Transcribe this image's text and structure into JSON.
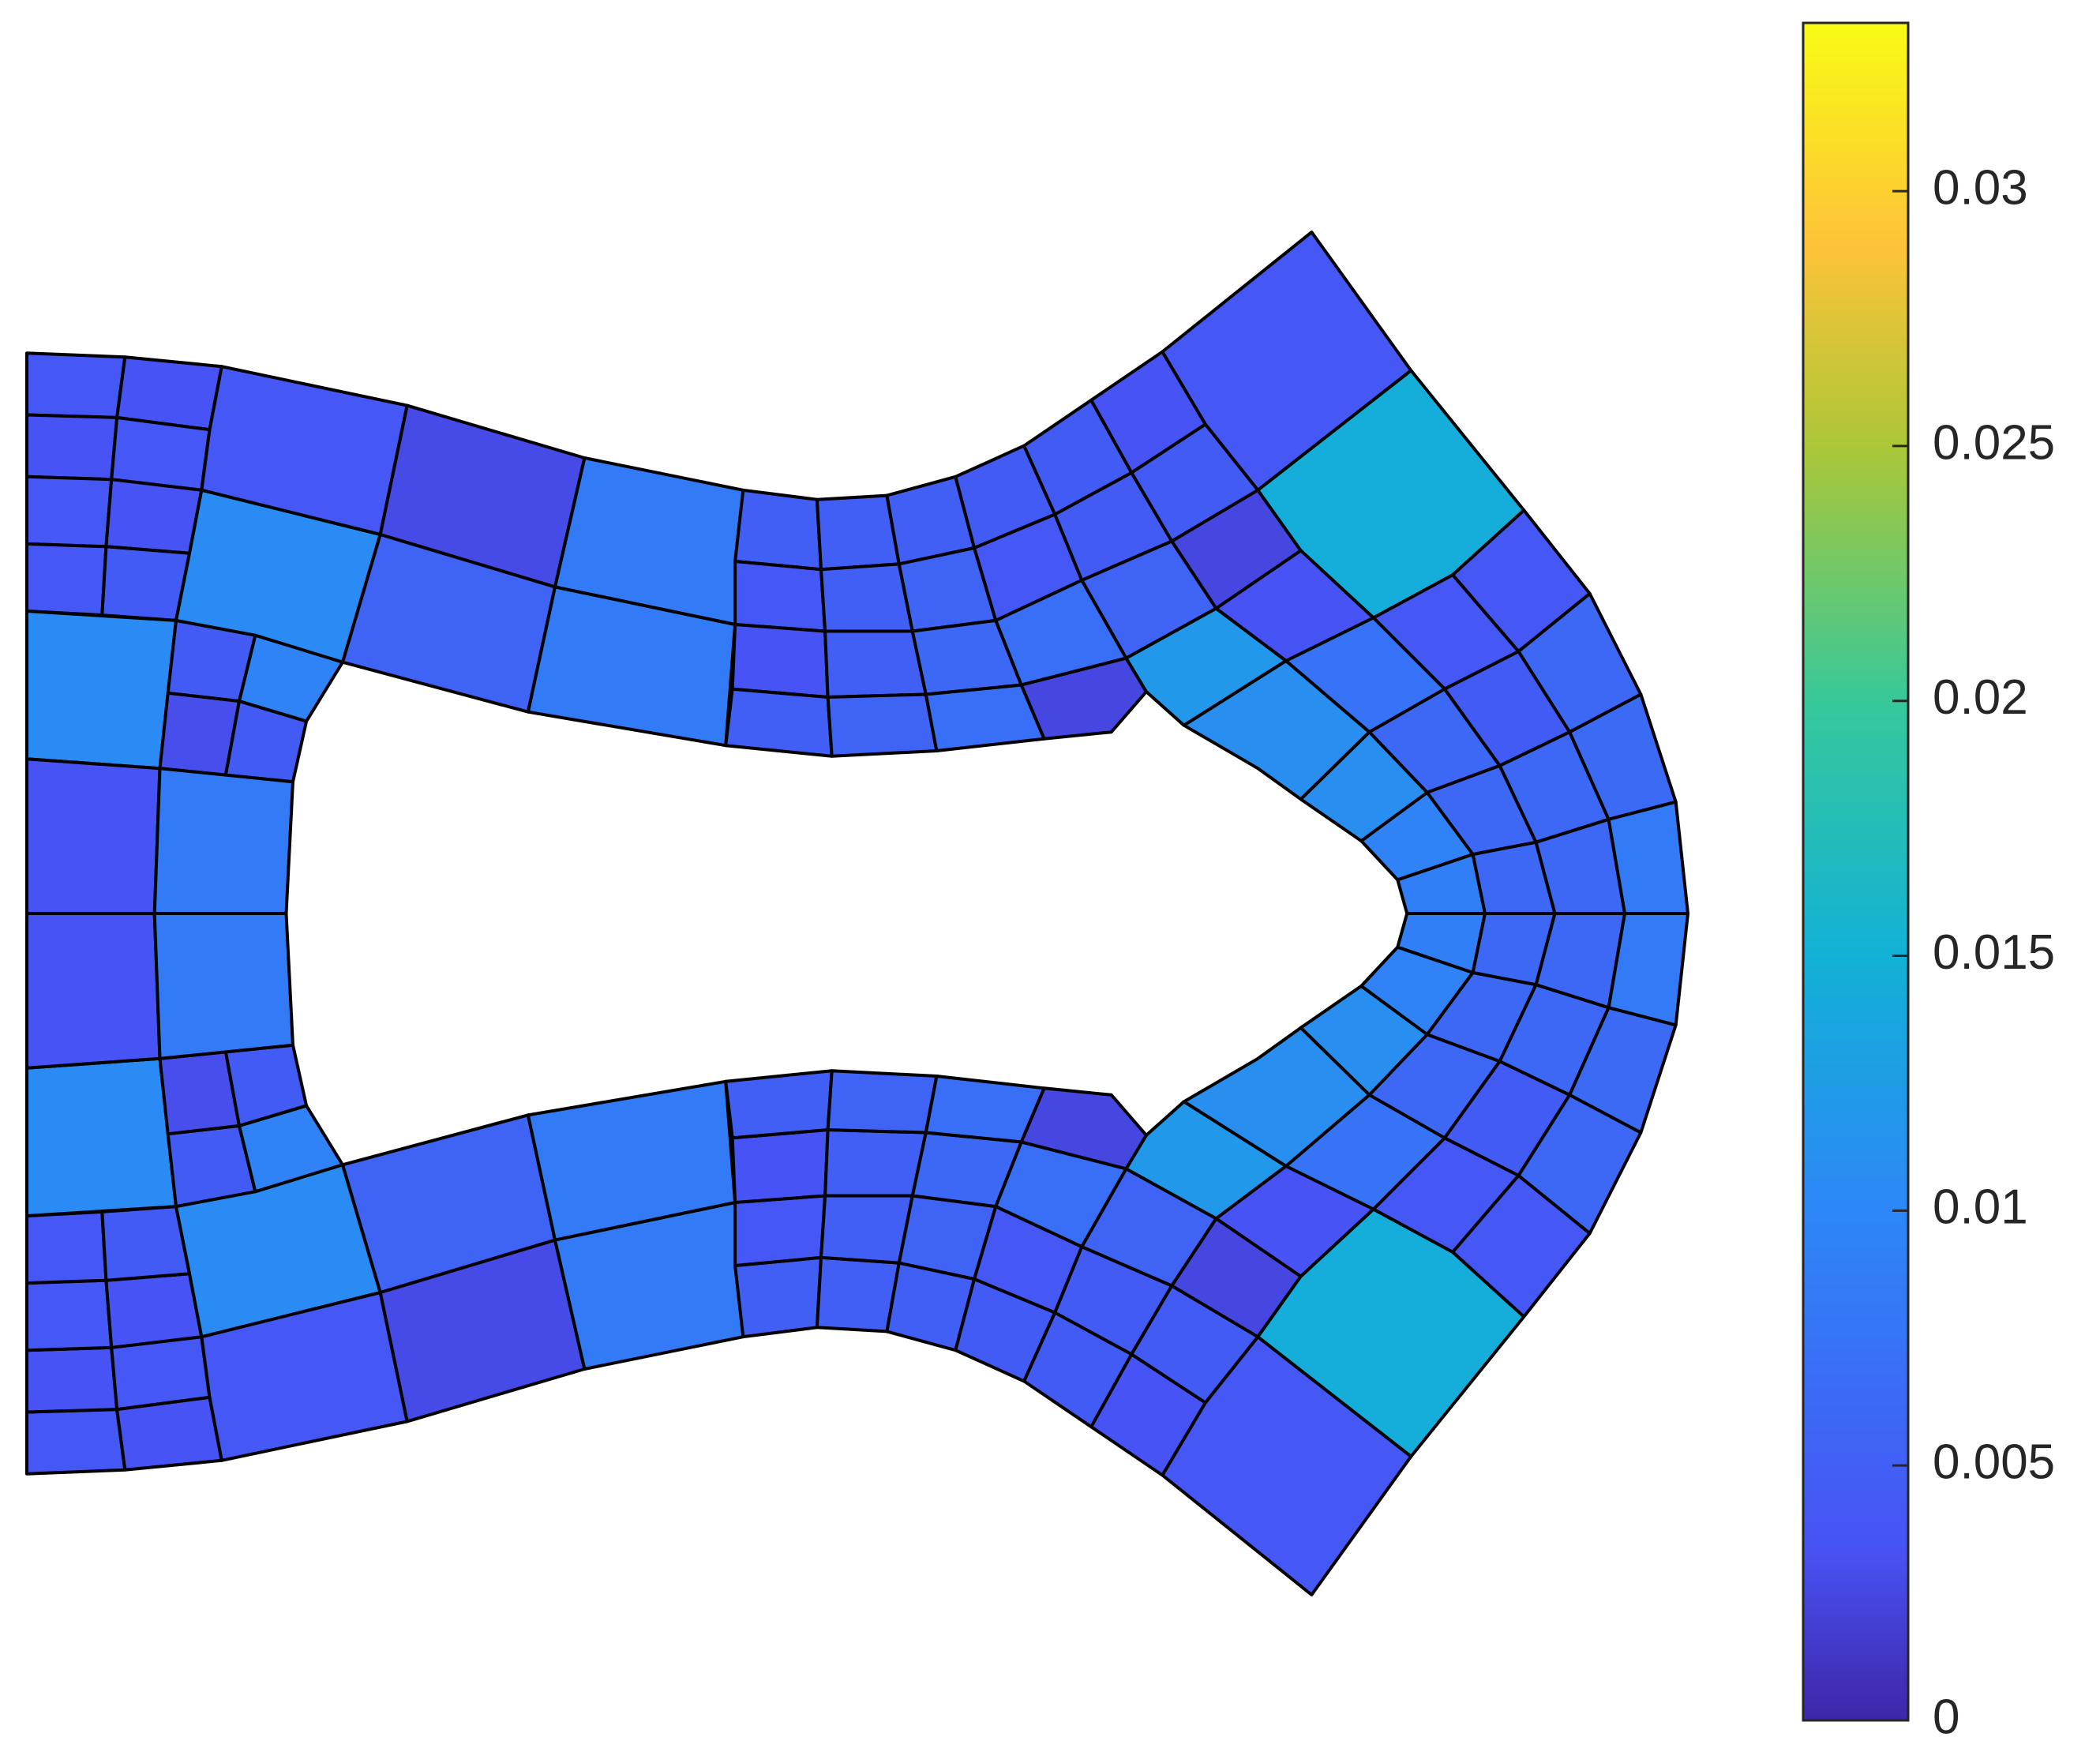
{
  "chart_data": {
    "type": "mesh",
    "xlim": [
      20,
      1256
    ],
    "ylim": [
      173,
      1187
    ],
    "clim": [
      0,
      0.0333
    ],
    "cticks": [
      0,
      0.005,
      0.01,
      0.015,
      0.02,
      0.025,
      0.03
    ],
    "colormap": [
      [
        0,
        "#3e26a8"
      ],
      [
        0.1,
        "#4852f4"
      ],
      [
        0.3,
        "#2d87f7"
      ],
      [
        0.45,
        "#12b1d6"
      ],
      [
        0.6,
        "#37c89a"
      ],
      [
        0.75,
        "#abc738"
      ],
      [
        0.87,
        "#fec338"
      ],
      [
        1,
        "#f9fb15"
      ]
    ],
    "edge_color": "#000000",
    "polygons": [
      [
        20,
        263,
        93,
        266,
        87,
        311,
        20,
        309
      ],
      [
        93,
        266,
        165,
        273,
        156,
        320,
        87,
        311
      ],
      [
        20,
        309,
        87,
        311,
        83,
        357,
        20,
        355
      ],
      [
        87,
        311,
        156,
        320,
        150,
        365,
        83,
        357
      ],
      [
        20,
        355,
        83,
        357,
        79,
        407,
        20,
        405
      ],
      [
        83,
        357,
        150,
        365,
        141,
        412,
        79,
        407
      ],
      [
        20,
        405,
        79,
        407,
        76,
        458,
        20,
        455
      ],
      [
        79,
        407,
        141,
        412,
        131,
        462,
        76,
        458
      ],
      [
        165,
        273,
        303,
        302,
        283,
        398,
        150,
        365,
        156,
        320
      ],
      [
        150,
        365,
        283,
        398,
        255,
        493,
        131,
        462,
        141,
        412
      ],
      [
        303,
        302,
        435,
        341,
        413,
        437,
        283,
        398
      ],
      [
        283,
        398,
        413,
        437,
        393,
        530,
        255,
        493
      ],
      [
        435,
        341,
        553,
        365,
        547,
        465,
        413,
        437
      ],
      [
        413,
        437,
        547,
        465,
        540,
        555,
        393,
        530
      ],
      [
        553,
        365,
        608,
        372,
        611,
        424,
        547,
        418
      ],
      [
        547,
        418,
        611,
        424,
        614,
        470,
        547,
        465
      ],
      [
        547,
        465,
        614,
        470,
        616,
        519,
        545,
        513
      ],
      [
        545,
        513,
        616,
        519,
        619,
        563,
        540,
        555
      ],
      [
        608,
        372,
        660,
        369,
        669,
        420,
        611,
        424
      ],
      [
        611,
        424,
        669,
        420,
        679,
        470,
        614,
        470
      ],
      [
        614,
        470,
        679,
        470,
        689,
        517,
        616,
        519
      ],
      [
        616,
        519,
        689,
        517,
        697,
        559,
        619,
        563
      ],
      [
        660,
        369,
        711,
        355,
        725,
        408,
        669,
        420
      ],
      [
        669,
        420,
        725,
        408,
        741,
        462,
        679,
        470
      ],
      [
        679,
        470,
        741,
        462,
        760,
        510,
        689,
        517
      ],
      [
        689,
        517,
        760,
        510,
        777,
        550,
        697,
        559
      ],
      [
        711,
        355,
        762,
        332,
        785,
        383,
        725,
        408
      ],
      [
        725,
        408,
        785,
        383,
        805,
        432,
        741,
        462
      ],
      [
        741,
        462,
        805,
        432,
        838,
        490,
        760,
        510
      ],
      [
        760,
        510,
        838,
        490,
        853,
        515,
        827,
        545,
        777,
        550
      ],
      [
        762,
        332,
        812,
        298,
        842,
        352,
        785,
        383
      ],
      [
        785,
        383,
        842,
        352,
        872,
        403,
        805,
        432
      ],
      [
        805,
        432,
        872,
        403,
        905,
        453,
        838,
        490
      ],
      [
        838,
        490,
        905,
        453,
        957,
        492,
        881,
        540,
        853,
        515
      ],
      [
        812,
        298,
        865,
        262,
        897,
        316,
        842,
        352
      ],
      [
        842,
        352,
        897,
        316,
        936,
        365,
        872,
        403
      ],
      [
        872,
        403,
        936,
        365,
        968,
        410,
        905,
        453
      ],
      [
        865,
        262,
        976,
        173,
        1050,
        276,
        936,
        365,
        897,
        316
      ],
      [
        936,
        365,
        1050,
        276,
        1134,
        380,
        1081,
        428,
        1022,
        460,
        968,
        410
      ],
      [
        968,
        410,
        1022,
        460,
        957,
        492,
        905,
        453
      ],
      [
        881,
        540,
        957,
        492,
        1019,
        545,
        968,
        595,
        936,
        572
      ],
      [
        1022,
        460,
        1081,
        428,
        1130,
        485,
        1075,
        513
      ],
      [
        1081,
        428,
        1134,
        380,
        1183,
        442,
        1130,
        485
      ],
      [
        957,
        492,
        1022,
        460,
        1075,
        513,
        1019,
        545
      ],
      [
        968,
        595,
        1019,
        545,
        1062,
        590,
        1013,
        626
      ],
      [
        1019,
        545,
        1075,
        513,
        1116,
        570,
        1062,
        590
      ],
      [
        1075,
        513,
        1130,
        485,
        1168,
        545,
        1116,
        570
      ],
      [
        1130,
        485,
        1183,
        442,
        1221,
        517,
        1168,
        545
      ],
      [
        1013,
        626,
        1062,
        590,
        1096,
        636,
        1040,
        655
      ],
      [
        1062,
        590,
        1116,
        570,
        1143,
        627,
        1096,
        636
      ],
      [
        1116,
        570,
        1168,
        545,
        1197,
        610,
        1143,
        627
      ],
      [
        1168,
        545,
        1221,
        517,
        1247,
        597,
        1197,
        610
      ],
      [
        1040,
        655,
        1096,
        636,
        1105,
        680,
        1047,
        680
      ],
      [
        1096,
        636,
        1143,
        627,
        1157,
        680,
        1105,
        680
      ],
      [
        1143,
        627,
        1197,
        610,
        1209,
        680,
        1157,
        680
      ],
      [
        1197,
        610,
        1247,
        597,
        1256,
        680,
        1209,
        680
      ],
      [
        20,
        455,
        131,
        462,
        119,
        572,
        20,
        565
      ],
      [
        131,
        462,
        190,
        473,
        178,
        522,
        125,
        516
      ],
      [
        190,
        473,
        255,
        493,
        228,
        537,
        178,
        522
      ],
      [
        125,
        516,
        178,
        522,
        168,
        577,
        119,
        572
      ],
      [
        178,
        522,
        228,
        537,
        218,
        582,
        168,
        577
      ],
      [
        20,
        565,
        119,
        572,
        115,
        680,
        20,
        680
      ],
      [
        119,
        572,
        218,
        582,
        213,
        680,
        115,
        680
      ],
      [
        20,
        1097,
        93,
        1094,
        87,
        1049,
        20,
        1051
      ],
      [
        93,
        1094,
        165,
        1087,
        156,
        1040,
        87,
        1049
      ],
      [
        20,
        1051,
        87,
        1049,
        83,
        1003,
        20,
        1005
      ],
      [
        87,
        1049,
        156,
        1040,
        150,
        995,
        83,
        1003
      ],
      [
        20,
        1005,
        83,
        1003,
        79,
        953,
        20,
        955
      ],
      [
        83,
        1003,
        150,
        995,
        141,
        948,
        79,
        953
      ],
      [
        20,
        955,
        79,
        953,
        76,
        902,
        20,
        905
      ],
      [
        79,
        953,
        141,
        948,
        131,
        898,
        76,
        902
      ],
      [
        165,
        1087,
        303,
        1058,
        283,
        962,
        150,
        995,
        156,
        1040
      ],
      [
        150,
        995,
        283,
        962,
        255,
        867,
        131,
        898,
        141,
        948
      ],
      [
        303,
        1058,
        435,
        1019,
        413,
        923,
        283,
        962
      ],
      [
        283,
        962,
        413,
        923,
        393,
        830,
        255,
        867
      ],
      [
        435,
        1019,
        553,
        995,
        547,
        895,
        413,
        923
      ],
      [
        413,
        923,
        547,
        895,
        540,
        805,
        393,
        830
      ],
      [
        553,
        995,
        608,
        988,
        611,
        936,
        547,
        942
      ],
      [
        547,
        942,
        611,
        936,
        614,
        890,
        547,
        895
      ],
      [
        547,
        895,
        614,
        890,
        616,
        841,
        545,
        847
      ],
      [
        545,
        847,
        616,
        841,
        619,
        797,
        540,
        805
      ],
      [
        608,
        988,
        660,
        991,
        669,
        940,
        611,
        936
      ],
      [
        611,
        936,
        669,
        940,
        679,
        890,
        614,
        890
      ],
      [
        614,
        890,
        679,
        890,
        689,
        843,
        616,
        841
      ],
      [
        616,
        841,
        689,
        843,
        697,
        801,
        619,
        797
      ],
      [
        660,
        991,
        711,
        1005,
        725,
        952,
        669,
        940
      ],
      [
        669,
        940,
        725,
        952,
        741,
        898,
        679,
        890
      ],
      [
        679,
        890,
        741,
        898,
        760,
        850,
        689,
        843
      ],
      [
        689,
        843,
        760,
        850,
        777,
        810,
        697,
        801
      ],
      [
        711,
        1005,
        762,
        1028,
        785,
        977,
        725,
        952
      ],
      [
        725,
        952,
        785,
        977,
        805,
        928,
        741,
        898
      ],
      [
        741,
        898,
        805,
        928,
        838,
        870,
        760,
        850
      ],
      [
        760,
        850,
        838,
        870,
        853,
        845,
        827,
        815,
        777,
        810
      ],
      [
        762,
        1028,
        812,
        1062,
        842,
        1008,
        785,
        977
      ],
      [
        785,
        977,
        842,
        1008,
        872,
        957,
        805,
        928
      ],
      [
        805,
        928,
        872,
        957,
        905,
        907,
        838,
        870
      ],
      [
        838,
        870,
        905,
        907,
        957,
        868,
        881,
        820,
        853,
        845
      ],
      [
        812,
        1062,
        865,
        1098,
        897,
        1044,
        842,
        1008
      ],
      [
        842,
        1008,
        897,
        1044,
        936,
        995,
        872,
        957
      ],
      [
        872,
        957,
        936,
        995,
        968,
        950,
        905,
        907
      ],
      [
        865,
        1098,
        976,
        1187,
        1050,
        1084,
        936,
        995,
        897,
        1044
      ],
      [
        936,
        995,
        1050,
        1084,
        1134,
        980,
        1081,
        932,
        1022,
        900,
        968,
        950
      ],
      [
        968,
        950,
        1022,
        900,
        957,
        868,
        905,
        907
      ],
      [
        881,
        820,
        957,
        868,
        1019,
        815,
        968,
        765,
        936,
        788
      ],
      [
        1022,
        900,
        1081,
        932,
        1130,
        875,
        1075,
        847
      ],
      [
        1081,
        932,
        1134,
        980,
        1183,
        918,
        1130,
        875
      ],
      [
        957,
        868,
        1022,
        900,
        1075,
        847,
        1019,
        815
      ],
      [
        968,
        765,
        1019,
        815,
        1062,
        770,
        1013,
        734
      ],
      [
        1019,
        815,
        1075,
        847,
        1116,
        790,
        1062,
        770
      ],
      [
        1075,
        847,
        1130,
        875,
        1168,
        815,
        1116,
        790
      ],
      [
        1130,
        875,
        1183,
        918,
        1221,
        843,
        1168,
        815
      ],
      [
        1013,
        734,
        1062,
        770,
        1096,
        724,
        1040,
        705
      ],
      [
        1062,
        770,
        1116,
        790,
        1143,
        733,
        1096,
        724
      ],
      [
        1116,
        790,
        1168,
        815,
        1197,
        750,
        1143,
        733
      ],
      [
        1168,
        815,
        1221,
        843,
        1247,
        763,
        1197,
        750
      ],
      [
        1040,
        705,
        1096,
        724,
        1105,
        680,
        1047,
        680
      ],
      [
        1096,
        724,
        1143,
        733,
        1157,
        680,
        1105,
        680
      ],
      [
        1143,
        733,
        1197,
        750,
        1209,
        680,
        1157,
        680
      ],
      [
        1197,
        750,
        1247,
        763,
        1256,
        680,
        1209,
        680
      ],
      [
        20,
        905,
        131,
        898,
        119,
        788,
        20,
        795
      ],
      [
        131,
        898,
        190,
        887,
        178,
        838,
        125,
        844
      ],
      [
        190,
        887,
        255,
        867,
        228,
        823,
        178,
        838
      ],
      [
        125,
        844,
        178,
        838,
        168,
        783,
        119,
        788
      ],
      [
        178,
        838,
        228,
        823,
        218,
        778,
        168,
        783
      ],
      [
        20,
        795,
        119,
        788,
        115,
        680,
        20,
        680
      ],
      [
        119,
        788,
        218,
        778,
        213,
        680,
        115,
        680
      ]
    ],
    "values": [
      0.004,
      0.0035,
      0.0035,
      0.004,
      0.004,
      0.0035,
      0.004,
      0.0045,
      0.004,
      0.0105,
      0.0028,
      0.0055,
      0.0085,
      0.0085,
      0.005,
      0.004,
      0.0035,
      0.005,
      0.005,
      0.005,
      0.005,
      0.0055,
      0.005,
      0.0055,
      0.006,
      0.007,
      0.0045,
      0.004,
      0.007,
      0.0025,
      0.0045,
      0.0045,
      0.0055,
      0.012,
      0.0035,
      0.0045,
      0.0025,
      0.004,
      0.0145,
      0.0035,
      0.011,
      0.004,
      0.004,
      0.0075,
      0.011,
      0.006,
      0.0045,
      0.006,
      0.0095,
      0.006,
      0.006,
      0.0065,
      0.009,
      0.006,
      0.006,
      0.0085,
      0.0105,
      0.0045,
      0.0095,
      0.003,
      0.0045,
      0.0035,
      0.0085,
      0.004,
      0.0035,
      0.0035,
      0.004,
      0.004,
      0.0035,
      0.004,
      0.0045,
      0.004,
      0.0105,
      0.0028,
      0.0055,
      0.0085,
      0.0085,
      0.005,
      0.004,
      0.0035,
      0.005,
      0.005,
      0.005,
      0.005,
      0.0055,
      0.005,
      0.0055,
      0.006,
      0.007,
      0.0045,
      0.004,
      0.007,
      0.0025,
      0.0045,
      0.0045,
      0.0055,
      0.012,
      0.0035,
      0.0045,
      0.0025,
      0.004,
      0.0145,
      0.0035,
      0.011,
      0.004,
      0.004,
      0.0075,
      0.011,
      0.006,
      0.0045,
      0.006,
      0.0095,
      0.006,
      0.006,
      0.0065,
      0.009,
      0.006,
      0.006,
      0.0085,
      0.0105,
      0.0045,
      0.0095,
      0.003,
      0.0045,
      0.0035,
      0.0085
    ]
  }
}
